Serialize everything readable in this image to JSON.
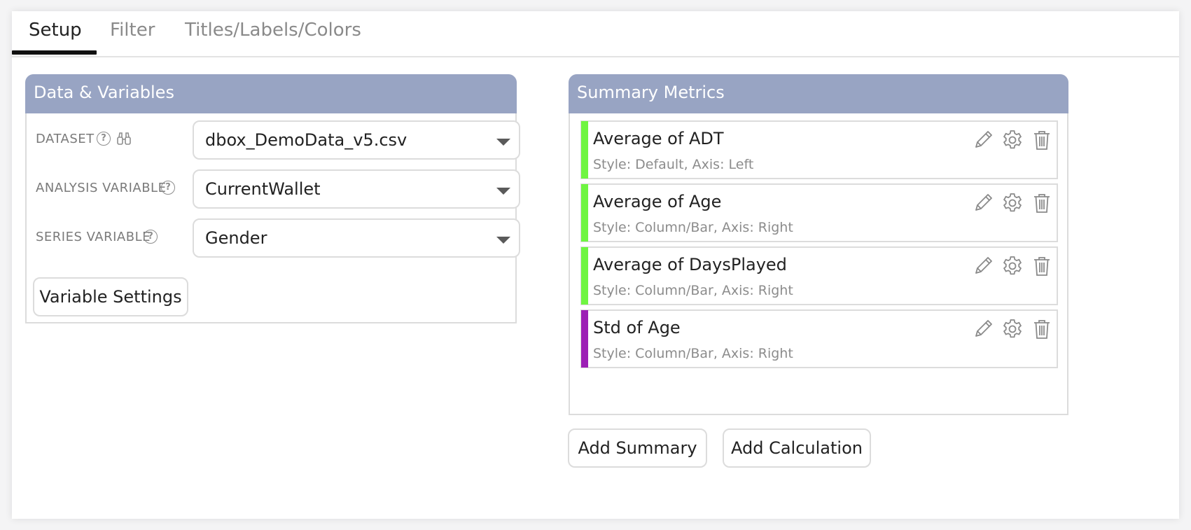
{
  "tabs": [
    {
      "label": "Setup",
      "active": true
    },
    {
      "label": "Filter",
      "active": false
    },
    {
      "label": "Titles/Labels/Colors",
      "active": false
    }
  ],
  "data_panel": {
    "title": "Data & Variables",
    "rows": [
      {
        "label": "DATASET",
        "value": "dbox_DemoData_v5.csv",
        "icons": [
          "help-icon",
          "binoculars-icon"
        ]
      },
      {
        "label": "ANALYSIS VARIABLE",
        "value": "CurrentWallet",
        "icons": [
          "help-icon"
        ]
      },
      {
        "label": "SERIES VARIABLE",
        "value": "Gender",
        "icons": [
          "help-icon"
        ]
      }
    ],
    "help_glyph": "?",
    "settings_button": "Variable Settings"
  },
  "summary_panel": {
    "title": "Summary Metrics",
    "metrics": [
      {
        "title": "Average of ADT",
        "subtitle": "Style: Default, Axis: Left",
        "color": "#6ff541"
      },
      {
        "title": "Average of Age",
        "subtitle": "Style: Column/Bar, Axis: Right",
        "color": "#6ff541"
      },
      {
        "title": "Average of DaysPlayed",
        "subtitle": "Style: Column/Bar, Axis: Right",
        "color": "#6ff541"
      },
      {
        "title": "Std of Age",
        "subtitle": "Style: Column/Bar, Axis: Right",
        "color": "#9c1fb5"
      }
    ],
    "add_summary_button": "Add Summary",
    "add_calculation_button": "Add Calculation"
  },
  "colors": {
    "panel_header": "#98a4c3",
    "metric_green": "#6ff541",
    "metric_purple": "#9c1fb5"
  }
}
